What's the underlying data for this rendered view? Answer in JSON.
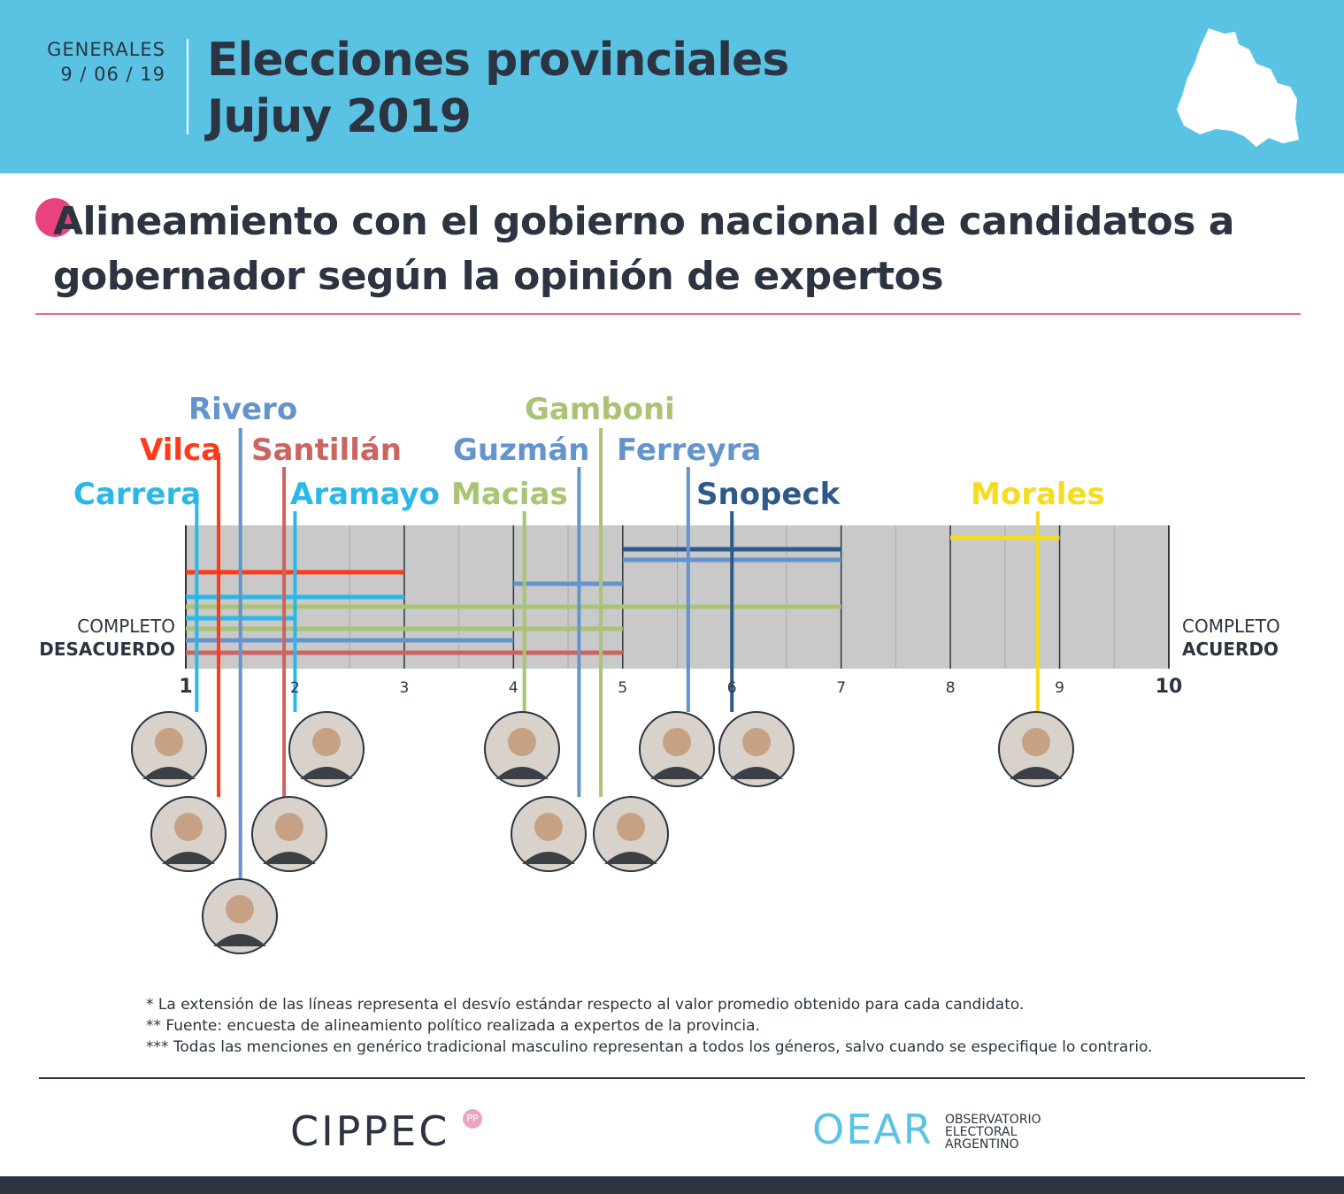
{
  "header": {
    "kicker": "GENERALES",
    "date": "9 / 06 / 19",
    "title_line1": "Elecciones provinciales",
    "title_line2": "Jujuy 2019",
    "map_icon": "jujuy-province-map-icon"
  },
  "title": {
    "line1": "Alineamiento con el gobierno nacional de candidatos a",
    "line2": "gobernador según la opinión de expertos"
  },
  "chart_data": {
    "type": "range-dot",
    "xlim": [
      1,
      10
    ],
    "x_ticks": [
      "1",
      "2",
      "3",
      "4",
      "5",
      "6",
      "7",
      "8",
      "9",
      "10"
    ],
    "left_label_top": "COMPLETO",
    "left_label_bottom": "DESACUERDO",
    "right_label_top": "COMPLETO",
    "right_label_bottom": "ACUERDO",
    "candidates": [
      {
        "name": "Carrera",
        "mean": 1.1,
        "low": 1.0,
        "high": 3.0,
        "color": "#2bb8e8"
      },
      {
        "name": "Vilca",
        "mean": 1.3,
        "low": 1.0,
        "high": 3.0,
        "color": "#ff3a1a"
      },
      {
        "name": "Rivero",
        "mean": 1.5,
        "low": 1.0,
        "high": 4.0,
        "color": "#6494cc"
      },
      {
        "name": "Santillán",
        "mean": 1.9,
        "low": 1.0,
        "high": 5.0,
        "color": "#cc6460"
      },
      {
        "name": "Aramayo",
        "mean": 2.0,
        "low": 1.0,
        "high": 2.0,
        "color": "#2bb8e8"
      },
      {
        "name": "Macias",
        "mean": 4.1,
        "low": 1.0,
        "high": 5.0,
        "color": "#a8c474"
      },
      {
        "name": "Guzmán",
        "mean": 4.6,
        "low": 4.0,
        "high": 5.0,
        "color": "#6494cc"
      },
      {
        "name": "Gamboni",
        "mean": 4.8,
        "low": 1.0,
        "high": 7.0,
        "color": "#a8c474"
      },
      {
        "name": "Ferreyra",
        "mean": 5.6,
        "low": 5.0,
        "high": 7.0,
        "color": "#6494cc"
      },
      {
        "name": "Snopeck",
        "mean": 6.0,
        "low": 5.0,
        "high": 7.0,
        "color": "#2e5a8a"
      },
      {
        "name": "Morales",
        "mean": 8.8,
        "low": 8.0,
        "high": 9.0,
        "color": "#f5dc1e"
      }
    ]
  },
  "notes": [
    "* La extensión de las líneas representa el desvío estándar respecto al valor promedio obtenido para cada candidato.",
    "** Fuente: encuesta de alineamiento político realizada a expertos de la provincia.",
    "*** Todas las menciones en genérico tradicional masculino representan a todos los géneros, salvo cuando se especifique lo contrario."
  ],
  "logos": {
    "cippec": "CIPPEC",
    "cippec_badge": "PP",
    "oear": "OEAR",
    "oear_line1": "OBSERVATORIO",
    "oear_line2": "ELECTORAL",
    "oear_line3": "ARGENTINO"
  }
}
